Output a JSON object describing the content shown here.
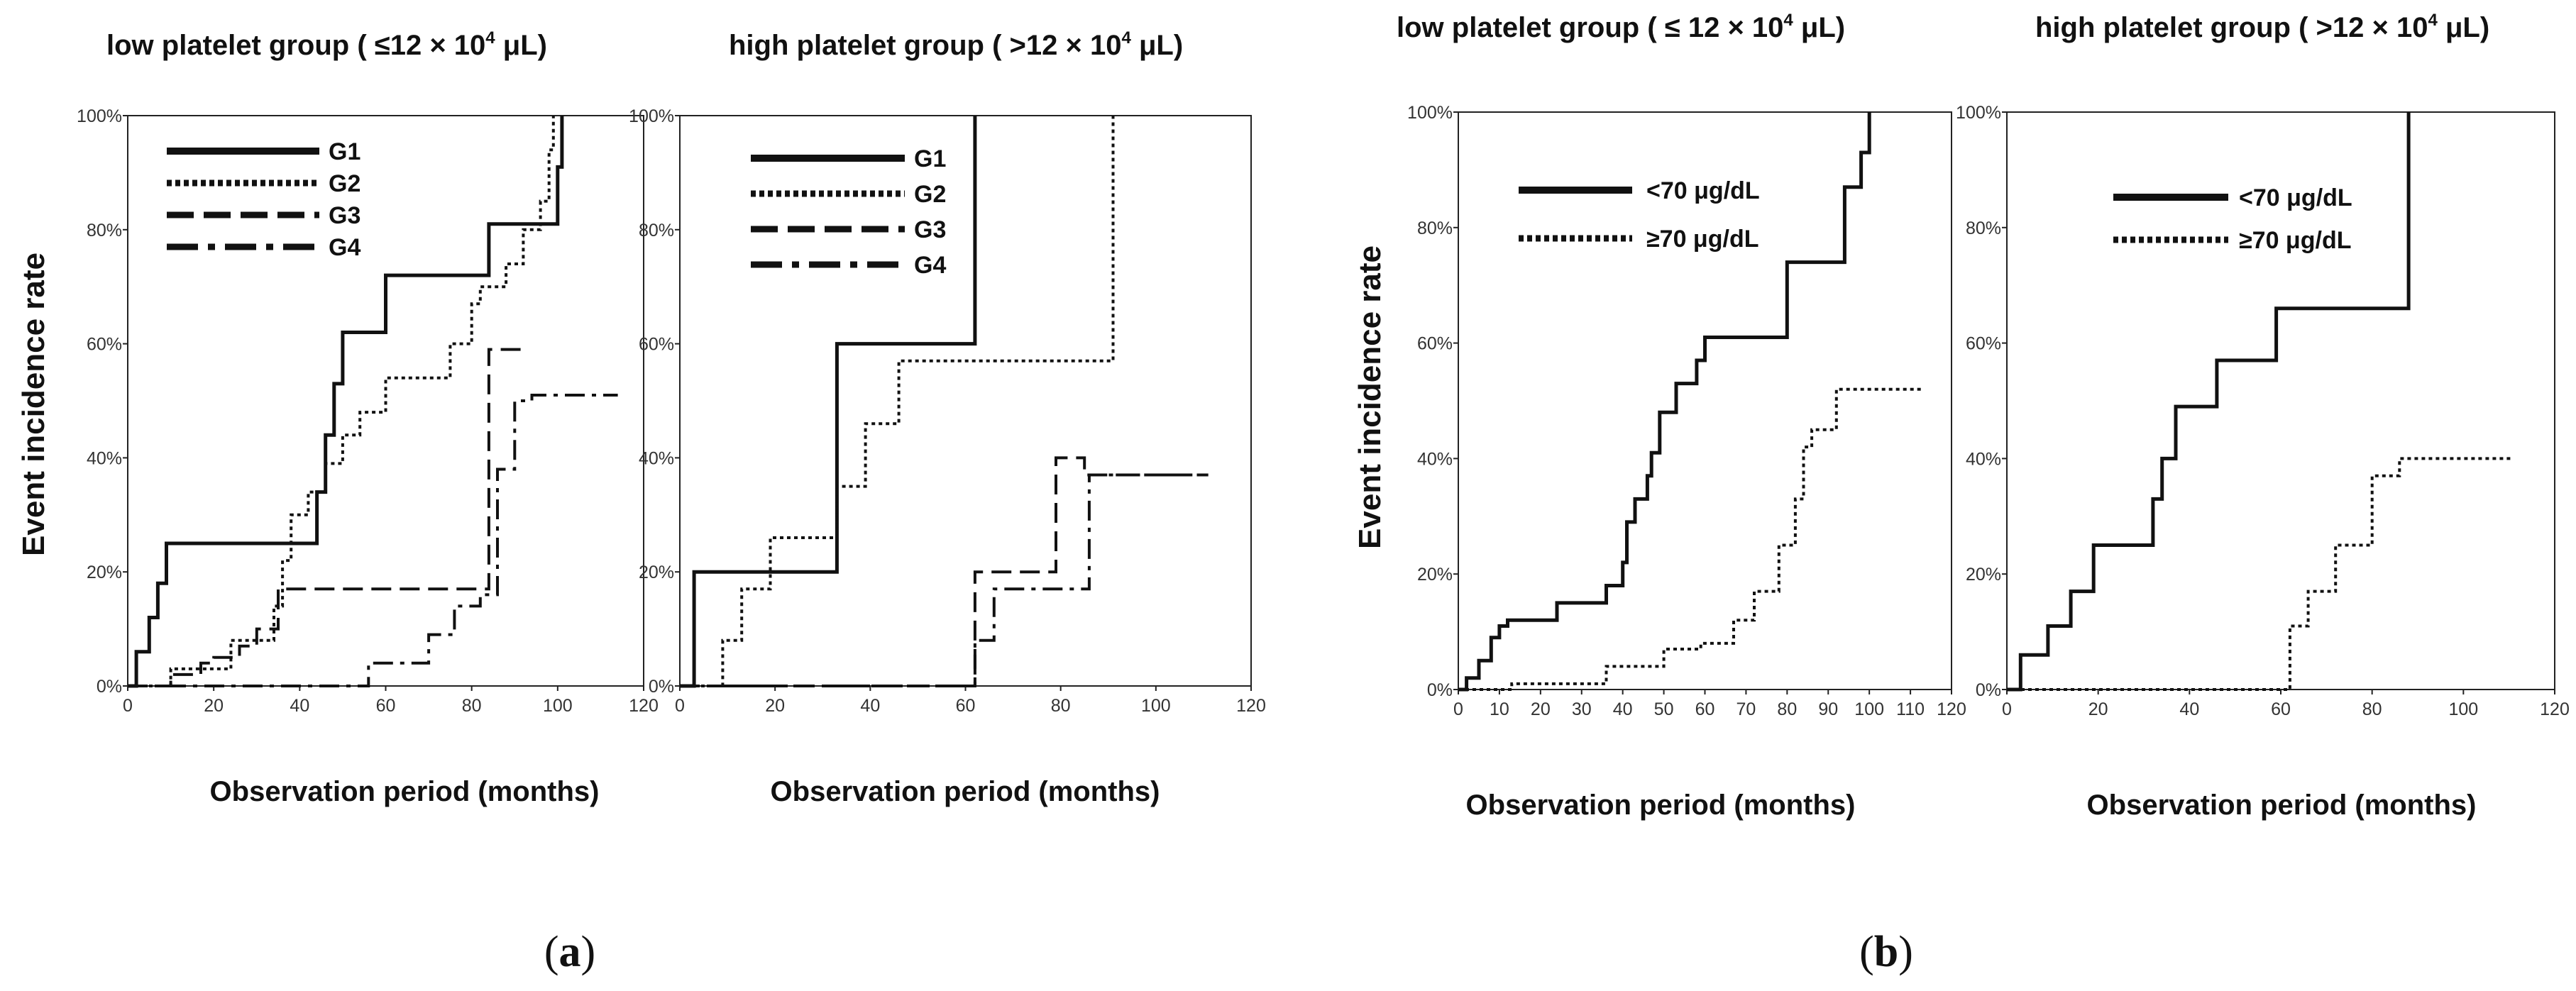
{
  "figure": {
    "panel_labels": [
      "a",
      "b"
    ]
  },
  "chart_data": [
    {
      "type": "line",
      "step": true,
      "panel": "a",
      "title": "low platelet group ( ≤12 × 10⁴ μL)",
      "title_parts": {
        "prefix": "low platelet group ( ≤12 × 10",
        "sup": "4",
        "suffix": " μL)"
      },
      "xlabel": "Observation period (months)",
      "ylabel": "Event  incidence rate",
      "xlim": [
        0,
        120
      ],
      "ylim": [
        0,
        100
      ],
      "xticks": [
        "0",
        "20",
        "40",
        "60",
        "80",
        "100",
        "120"
      ],
      "yticks": [
        "0%",
        "20%",
        "40%",
        "60%",
        "80%",
        "100%"
      ],
      "legend_position": "top-left",
      "series": [
        {
          "name": "G1",
          "style": "solid",
          "x": [
            0,
            2,
            5,
            7,
            9,
            38,
            44,
            46,
            48,
            50,
            60,
            80,
            84,
            100,
            101
          ],
          "y": [
            0,
            6,
            12,
            18,
            25,
            25,
            34,
            44,
            53,
            62,
            72,
            72,
            81,
            91,
            100
          ]
        },
        {
          "name": "G2",
          "style": "dotted",
          "x": [
            0,
            10,
            24,
            34,
            36,
            38,
            42,
            46,
            50,
            54,
            60,
            70,
            75,
            80,
            82,
            84,
            88,
            92,
            96,
            98,
            99
          ],
          "y": [
            0,
            3,
            8,
            14,
            22,
            30,
            34,
            39,
            44,
            48,
            54,
            54,
            60,
            67,
            70,
            70,
            74,
            80,
            85,
            94,
            100
          ]
        },
        {
          "name": "G3",
          "style": "dashed",
          "x": [
            0,
            10,
            17,
            20,
            26,
            30,
            35,
            80,
            84,
            90,
            92
          ],
          "y": [
            0,
            2,
            4,
            5,
            7,
            10,
            17,
            17,
            59,
            59,
            59
          ]
        },
        {
          "name": "G4",
          "style": "dashdot",
          "x": [
            0,
            56,
            64,
            70,
            76,
            82,
            86,
            90,
            94,
            114
          ],
          "y": [
            0,
            4,
            4,
            9,
            14,
            16,
            38,
            50,
            51,
            51
          ]
        }
      ]
    },
    {
      "type": "line",
      "step": true,
      "panel": "a",
      "title": "high platelet group ( >12 × 10⁴ μL)",
      "title_parts": {
        "prefix": "high platelet group ( >12 × 10",
        "sup": "4",
        "suffix": " μL)"
      },
      "xlabel": "Observation period (months)",
      "ylabel": "",
      "xlim": [
        0,
        120
      ],
      "ylim": [
        0,
        100
      ],
      "xticks": [
        "0",
        "20",
        "40",
        "60",
        "80",
        "100",
        "120"
      ],
      "yticks": [
        "0%",
        "20%",
        "40%",
        "60%",
        "80%",
        "100%"
      ],
      "legend_position": "top-left",
      "series": [
        {
          "name": "G1",
          "style": "solid",
          "x": [
            0,
            3,
            33,
            60,
            62
          ],
          "y": [
            0,
            20,
            60,
            60,
            100
          ]
        },
        {
          "name": "G2",
          "style": "dotted",
          "x": [
            0,
            9,
            13,
            19,
            33,
            39,
            46,
            88,
            91
          ],
          "y": [
            0,
            8,
            17,
            26,
            35,
            46,
            57,
            57,
            100
          ]
        },
        {
          "name": "G3",
          "style": "dashed",
          "x": [
            0,
            62,
            74,
            79,
            85,
            111
          ],
          "y": [
            0,
            20,
            20,
            40,
            37,
            37
          ]
        },
        {
          "name": "G4",
          "style": "dashdot",
          "x": [
            0,
            62,
            66,
            72,
            80,
            86,
            111
          ],
          "y": [
            0,
            8,
            17,
            17,
            17,
            37,
            37
          ]
        }
      ]
    },
    {
      "type": "line",
      "step": true,
      "panel": "b",
      "title": "low platelet group ( ≤ 12 × 10⁴ μL)",
      "title_parts": {
        "prefix": "low platelet group ( ≤ 12 × 10",
        "sup": "4",
        "suffix": " μL)"
      },
      "xlabel": "Observation period (months)",
      "ylabel": "Event incidence rate",
      "xlim": [
        0,
        120
      ],
      "ylim": [
        0,
        100
      ],
      "xticks": [
        "0",
        "10",
        "20",
        "30",
        "40",
        "50",
        "60",
        "70",
        "80",
        "90",
        "100",
        "110",
        "120"
      ],
      "yticks": [
        "0%",
        "20%",
        "40%",
        "60%",
        "80%",
        "100%"
      ],
      "legend_position": "top-left",
      "series": [
        {
          "name": "<70 μg/dL",
          "style": "solid",
          "x": [
            0,
            2,
            5,
            8,
            10,
            12,
            24,
            36,
            40,
            41,
            43,
            46,
            47,
            49,
            53,
            58,
            60,
            78,
            80,
            94,
            98,
            100
          ],
          "y": [
            0,
            2,
            5,
            9,
            11,
            12,
            15,
            18,
            22,
            29,
            33,
            37,
            41,
            48,
            53,
            57,
            61,
            61,
            74,
            87,
            93,
            100
          ]
        },
        {
          "name": "≥70 μg/dL",
          "style": "dotted",
          "x": [
            0,
            13,
            36,
            50,
            59,
            67,
            72,
            78,
            82,
            84,
            86,
            92,
            113
          ],
          "y": [
            0,
            1,
            4,
            7,
            8,
            12,
            17,
            25,
            33,
            42,
            45,
            52,
            52
          ]
        }
      ]
    },
    {
      "type": "line",
      "step": true,
      "panel": "b",
      "title": "high platelet group ( >12 × 10⁴ μL)",
      "title_parts": {
        "prefix": "high platelet group ( >12 × 10",
        "sup": "4",
        "suffix": " μL)"
      },
      "xlabel": "Observation period (months)",
      "ylabel": "",
      "xlim": [
        0,
        120
      ],
      "ylim": [
        0,
        100
      ],
      "xticks": [
        "0",
        "20",
        "40",
        "60",
        "80",
        "100",
        "120"
      ],
      "yticks": [
        "0%",
        "20%",
        "40%",
        "60%",
        "80%",
        "100%"
      ],
      "legend_position": "top-left",
      "series": [
        {
          "name": "<70 μg/dL",
          "style": "solid",
          "x": [
            0,
            3,
            9,
            14,
            19,
            32,
            34,
            37,
            46,
            59,
            88
          ],
          "y": [
            0,
            6,
            11,
            17,
            25,
            33,
            40,
            49,
            57,
            66,
            100
          ]
        },
        {
          "name": "≥70 μg/dL",
          "style": "dotted",
          "x": [
            0,
            62,
            66,
            72,
            80,
            86,
            111
          ],
          "y": [
            0,
            11,
            17,
            25,
            37,
            40,
            40
          ]
        }
      ]
    }
  ]
}
